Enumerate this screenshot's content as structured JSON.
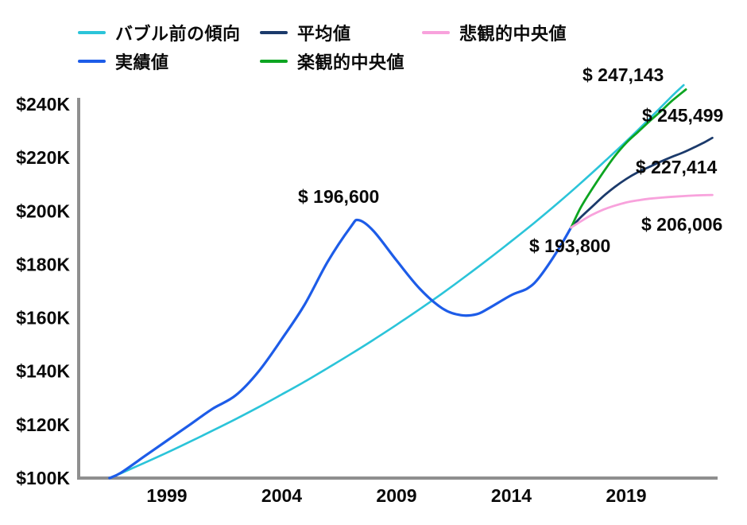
{
  "chart_data": {
    "type": "line",
    "title": "",
    "xlabel": "",
    "ylabel": "",
    "unit": "USD thousands ($K)",
    "grid": false,
    "legend_position": "top",
    "x_axis": {
      "range_years": [
        1996.5,
        2023
      ],
      "ticks": [
        {
          "value": 1999,
          "label": "1999"
        },
        {
          "value": 2004,
          "label": "2004"
        },
        {
          "value": 2009,
          "label": "2009"
        },
        {
          "value": 2014,
          "label": "2014"
        },
        {
          "value": 2019,
          "label": "2019"
        }
      ]
    },
    "y_axis": {
      "range": [
        100,
        240
      ],
      "ticks": [
        {
          "value": 100,
          "label": "$100K"
        },
        {
          "value": 120,
          "label": "$120K"
        },
        {
          "value": 140,
          "label": "$140K"
        },
        {
          "value": 160,
          "label": "$160K"
        },
        {
          "value": 180,
          "label": "$180K"
        },
        {
          "value": 200,
          "label": "$200K"
        },
        {
          "value": 220,
          "label": "$220K"
        },
        {
          "value": 240,
          "label": "$240K"
        }
      ]
    },
    "series": [
      {
        "key": "pre-bubble-trend",
        "name": "バブル前の傾向",
        "color": "#2bc4d9",
        "width": 2.6,
        "points": [
          [
            1996.5,
            100
          ],
          [
            1997,
            101.8
          ],
          [
            1998,
            105.6
          ],
          [
            1999,
            109.5
          ],
          [
            2000,
            113.6
          ],
          [
            2001,
            117.8
          ],
          [
            2002,
            122.1
          ],
          [
            2003,
            126.6
          ],
          [
            2004,
            131.3
          ],
          [
            2005,
            136.1
          ],
          [
            2006,
            141.2
          ],
          [
            2007,
            146.4
          ],
          [
            2008,
            151.8
          ],
          [
            2009,
            157.4
          ],
          [
            2010,
            163.2
          ],
          [
            2011,
            169.2
          ],
          [
            2012,
            175.5
          ],
          [
            2013,
            182.0
          ],
          [
            2014,
            188.7
          ],
          [
            2015,
            195.6
          ],
          [
            2016,
            202.8
          ],
          [
            2017,
            210.3
          ],
          [
            2018,
            218.1
          ],
          [
            2019,
            226.1
          ],
          [
            2020,
            234.5
          ],
          [
            2021,
            243.1
          ],
          [
            2021.5,
            247.143
          ]
        ]
      },
      {
        "key": "actual",
        "name": "実績値",
        "color": "#1d5ce8",
        "width": 3.2,
        "points": [
          [
            1996.5,
            100
          ],
          [
            1997,
            102
          ],
          [
            1998,
            108
          ],
          [
            1999,
            114
          ],
          [
            2000,
            120
          ],
          [
            2001,
            126
          ],
          [
            2002,
            131
          ],
          [
            2003,
            140
          ],
          [
            2004,
            152
          ],
          [
            2005,
            165
          ],
          [
            2006,
            181
          ],
          [
            2007,
            194
          ],
          [
            2007.35,
            196.6
          ],
          [
            2008,
            192.5
          ],
          [
            2009,
            181.5
          ],
          [
            2010,
            171
          ],
          [
            2011,
            163.5
          ],
          [
            2011.8,
            161
          ],
          [
            2012.5,
            161.4
          ],
          [
            2013,
            163.5
          ],
          [
            2014,
            168.5
          ],
          [
            2014.7,
            171
          ],
          [
            2015.2,
            175
          ],
          [
            2016,
            185
          ],
          [
            2016.6,
            193.8
          ]
        ]
      },
      {
        "key": "mean",
        "name": "平均値",
        "color": "#1b3a6b",
        "width": 2.8,
        "points": [
          [
            2016.6,
            193.8
          ],
          [
            2017,
            197.5
          ],
          [
            2017.5,
            201.5
          ],
          [
            2018,
            205.5
          ],
          [
            2018.5,
            209
          ],
          [
            2019,
            212
          ],
          [
            2019.5,
            214.5
          ],
          [
            2020,
            216.5
          ],
          [
            2020.5,
            218.5
          ],
          [
            2021,
            220.3
          ],
          [
            2021.5,
            222
          ],
          [
            2022,
            224
          ],
          [
            2022.4,
            225.7
          ],
          [
            2022.75,
            227.414
          ]
        ]
      },
      {
        "key": "optimistic-median",
        "name": "楽観的中央値",
        "color": "#0da521",
        "width": 2.8,
        "points": [
          [
            2016.6,
            193.8
          ],
          [
            2017,
            201
          ],
          [
            2017.5,
            208
          ],
          [
            2018,
            214.5
          ],
          [
            2018.5,
            220.5
          ],
          [
            2019,
            225.5
          ],
          [
            2019.5,
            229.5
          ],
          [
            2020,
            233.5
          ],
          [
            2020.5,
            237.3
          ],
          [
            2021,
            241.3
          ],
          [
            2021.6,
            245.499
          ]
        ]
      },
      {
        "key": "pessimistic-median",
        "name": "悲観的中央値",
        "color": "#f8a2dc",
        "width": 2.8,
        "points": [
          [
            2016.6,
            193.8
          ],
          [
            2017,
            196
          ],
          [
            2017.5,
            198.5
          ],
          [
            2018,
            200.5
          ],
          [
            2018.5,
            202
          ],
          [
            2019,
            203.2
          ],
          [
            2019.5,
            204
          ],
          [
            2020,
            204.6
          ],
          [
            2020.8,
            205.2
          ],
          [
            2021.5,
            205.6
          ],
          [
            2022.2,
            205.9
          ],
          [
            2022.75,
            206.006
          ]
        ]
      }
    ],
    "annotations": [
      {
        "key": "actual-peak",
        "text": "$ 196,600",
        "series": "actual",
        "year": 2007.35,
        "value": 196600
      },
      {
        "key": "pre-bubble-trend-end",
        "text": "$ 247,143",
        "series": "pre-bubble-trend",
        "year": 2021.5,
        "value": 247143
      },
      {
        "key": "optimistic-end",
        "text": "$ 245,499",
        "series": "optimistic-median",
        "year": 2021.6,
        "value": 245499
      },
      {
        "key": "mean-end",
        "text": "$ 227,414",
        "series": "mean",
        "year": 2022.75,
        "value": 227414
      },
      {
        "key": "pessimistic-end",
        "text": "$ 206,006",
        "series": "pessimistic-median",
        "year": 2022.75,
        "value": 206006
      },
      {
        "key": "actual-end",
        "text": "$ 193,800",
        "series": "actual",
        "year": 2016.6,
        "value": 193800
      }
    ],
    "axis_color": "#8f8f8f",
    "text_color": "#0a0a0a"
  }
}
